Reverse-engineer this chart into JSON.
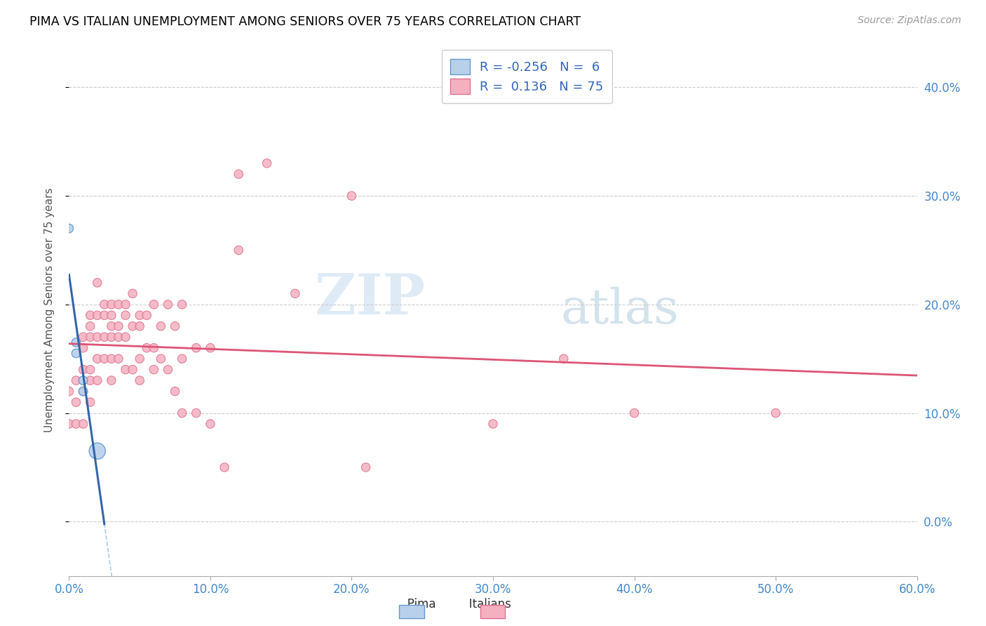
{
  "title": "PIMA VS ITALIAN UNEMPLOYMENT AMONG SENIORS OVER 75 YEARS CORRELATION CHART",
  "source": "Source: ZipAtlas.com",
  "xlim": [
    0.0,
    0.6
  ],
  "ylim": [
    -0.05,
    0.44
  ],
  "ylabel": "Unemployment Among Seniors over 75 years",
  "legend_pima_label": "Pima",
  "legend_italians_label": "Italians",
  "pima_R": -0.256,
  "pima_N": 6,
  "italians_R": 0.136,
  "italians_N": 75,
  "pima_color": "#b8d0ea",
  "pima_edge_color": "#6699cc",
  "italians_color": "#f5b0c0",
  "italians_edge_color": "#dd7090",
  "pima_line_color": "#3366aa",
  "italians_line_color": "#dd5577",
  "trend_dash_color": "#aaccee",
  "watermark_zip": "ZIP",
  "watermark_atlas": "atlas",
  "pima_x": [
    0.0,
    0.005,
    0.005,
    0.01,
    0.01,
    0.02
  ],
  "pima_y": [
    0.27,
    0.165,
    0.155,
    0.13,
    0.12,
    0.065
  ],
  "pima_sizes": [
    80,
    80,
    80,
    80,
    80,
    280
  ],
  "italians_x": [
    0.0,
    0.0,
    0.005,
    0.005,
    0.005,
    0.01,
    0.01,
    0.01,
    0.01,
    0.01,
    0.015,
    0.015,
    0.015,
    0.015,
    0.015,
    0.015,
    0.02,
    0.02,
    0.02,
    0.02,
    0.02,
    0.025,
    0.025,
    0.025,
    0.025,
    0.03,
    0.03,
    0.03,
    0.03,
    0.03,
    0.03,
    0.035,
    0.035,
    0.035,
    0.035,
    0.04,
    0.04,
    0.04,
    0.04,
    0.045,
    0.045,
    0.045,
    0.05,
    0.05,
    0.05,
    0.05,
    0.055,
    0.055,
    0.06,
    0.06,
    0.06,
    0.065,
    0.065,
    0.07,
    0.07,
    0.075,
    0.075,
    0.08,
    0.08,
    0.08,
    0.09,
    0.09,
    0.1,
    0.1,
    0.11,
    0.12,
    0.12,
    0.14,
    0.16,
    0.2,
    0.21,
    0.3,
    0.35,
    0.4,
    0.5
  ],
  "italians_y": [
    0.12,
    0.09,
    0.13,
    0.11,
    0.09,
    0.17,
    0.16,
    0.14,
    0.12,
    0.09,
    0.19,
    0.18,
    0.17,
    0.14,
    0.13,
    0.11,
    0.22,
    0.19,
    0.17,
    0.15,
    0.13,
    0.2,
    0.19,
    0.17,
    0.15,
    0.2,
    0.19,
    0.18,
    0.17,
    0.15,
    0.13,
    0.2,
    0.18,
    0.17,
    0.15,
    0.2,
    0.19,
    0.17,
    0.14,
    0.21,
    0.18,
    0.14,
    0.19,
    0.18,
    0.15,
    0.13,
    0.19,
    0.16,
    0.2,
    0.16,
    0.14,
    0.18,
    0.15,
    0.2,
    0.14,
    0.18,
    0.12,
    0.2,
    0.15,
    0.1,
    0.16,
    0.1,
    0.16,
    0.09,
    0.05,
    0.32,
    0.25,
    0.33,
    0.21,
    0.3,
    0.05,
    0.09,
    0.15,
    0.1,
    0.1
  ],
  "italians_sizes": [
    80,
    80,
    80,
    80,
    80,
    80,
    80,
    80,
    80,
    80,
    80,
    80,
    80,
    80,
    80,
    80,
    80,
    80,
    80,
    80,
    80,
    80,
    80,
    80,
    80,
    80,
    80,
    80,
    80,
    80,
    80,
    80,
    80,
    80,
    80,
    80,
    80,
    80,
    80,
    80,
    80,
    80,
    80,
    80,
    80,
    80,
    80,
    80,
    80,
    80,
    80,
    80,
    80,
    80,
    80,
    80,
    80,
    80,
    80,
    80,
    80,
    80,
    80,
    80,
    80,
    80,
    80,
    80,
    80,
    80,
    80,
    80,
    80,
    80,
    80
  ]
}
